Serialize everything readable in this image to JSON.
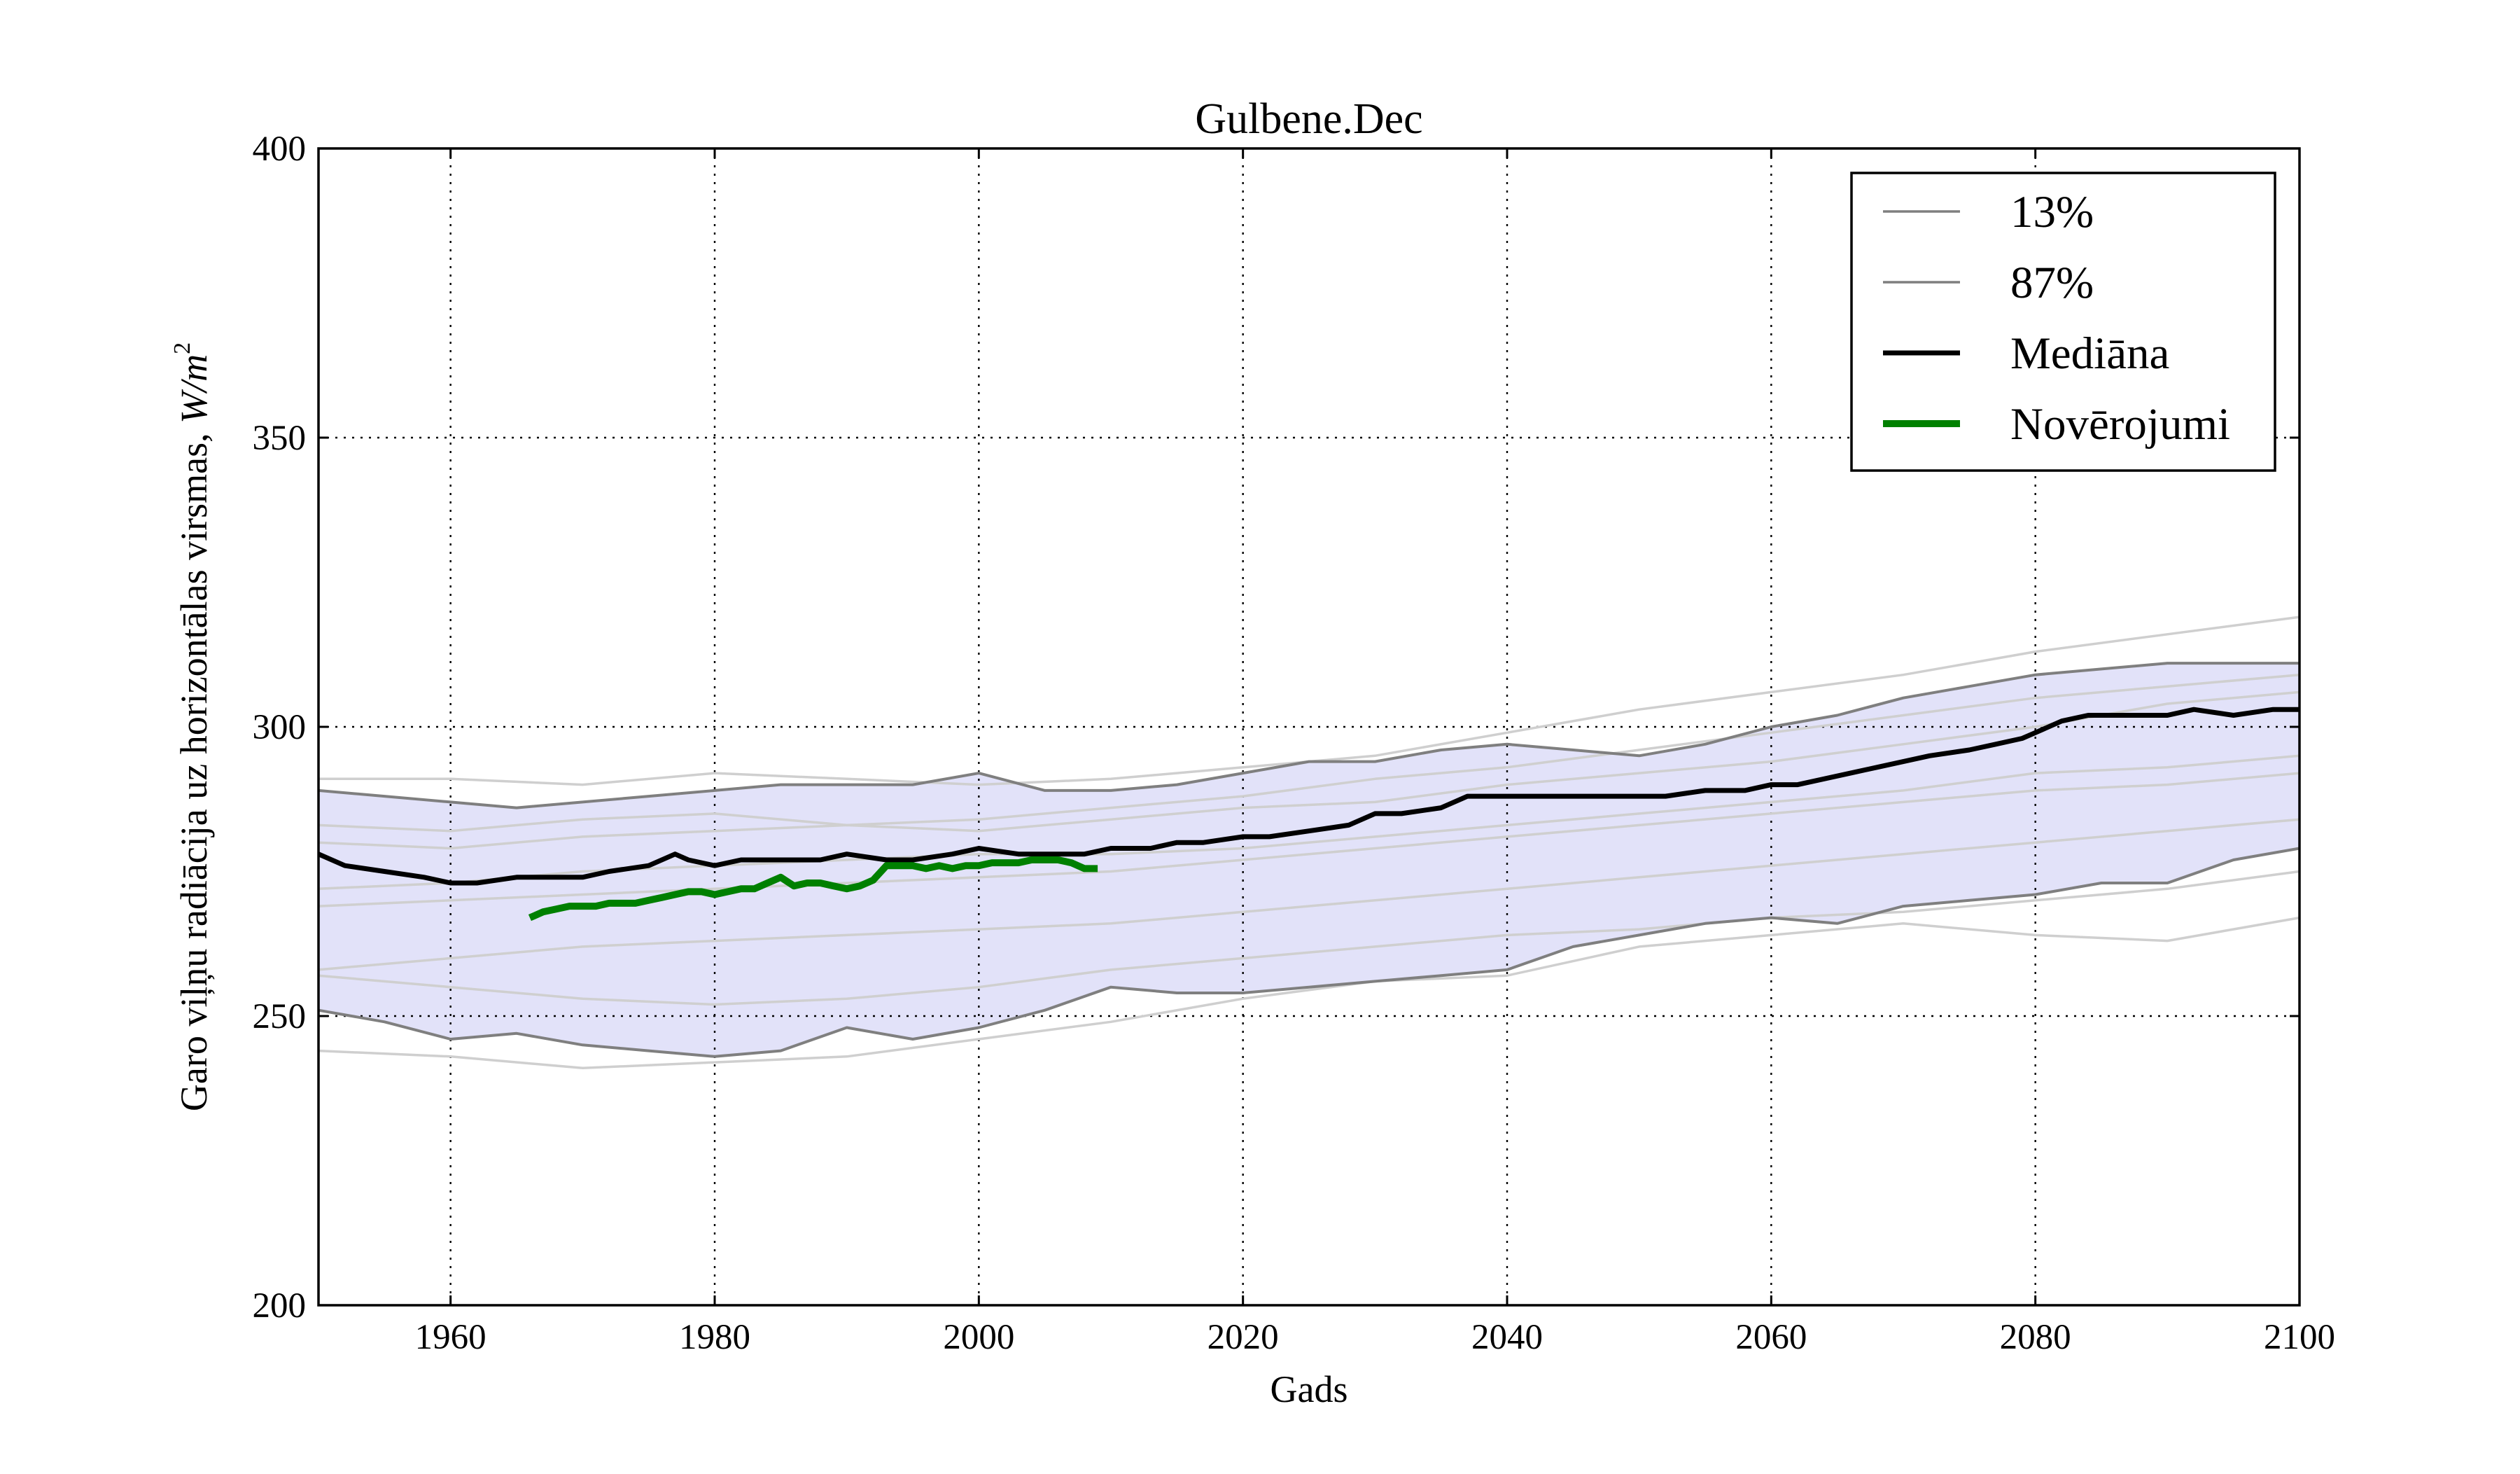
{
  "chart_data": {
    "type": "line",
    "title": "Gulbene.Dec",
    "xlabel": "Gads",
    "ylabel": "Garo viļņu radiācija uz horizontālas virsmas, W/m²",
    "ylabel_unit": "W/m²",
    "xlim": [
      1950,
      2100
    ],
    "ylim": [
      200,
      400
    ],
    "xticks": [
      "1960",
      "1980",
      "2000",
      "2020",
      "2040",
      "2060",
      "2080",
      "2100"
    ],
    "yticks": [
      "200",
      "250",
      "300",
      "350",
      "400"
    ],
    "grid": true,
    "legend_position": "top-right",
    "colors": {
      "band": "#e2e2f9",
      "p13": "#7f7f7f",
      "p87": "#7f7f7f",
      "ensemble": "#cfcfcf",
      "median": "#000000",
      "observations": "#008000"
    },
    "legend": [
      {
        "label": "13%",
        "color": "#7f7f7f",
        "width": 3.5
      },
      {
        "label": "87%",
        "color": "#7f7f7f",
        "width": 3.5
      },
      {
        "label": "Mediāna",
        "color": "#000000",
        "width": 7
      },
      {
        "label": "Novērojumi",
        "color": "#008000",
        "width": 10
      }
    ],
    "series": [
      {
        "name": "13%",
        "x": [
          1950,
          1955,
          1960,
          1965,
          1970,
          1975,
          1980,
          1985,
          1990,
          1995,
          2000,
          2005,
          2010,
          2015,
          2020,
          2025,
          2030,
          2035,
          2040,
          2045,
          2050,
          2055,
          2060,
          2065,
          2070,
          2075,
          2080,
          2085,
          2090,
          2095,
          2100
        ],
        "y": [
          251,
          249,
          246,
          247,
          245,
          244,
          243,
          244,
          248,
          246,
          248,
          251,
          255,
          254,
          254,
          255,
          256,
          257,
          258,
          262,
          264,
          266,
          267,
          266,
          269,
          270,
          271,
          273,
          273,
          277,
          279
        ]
      },
      {
        "name": "87%",
        "x": [
          1950,
          1955,
          1960,
          1965,
          1970,
          1975,
          1980,
          1985,
          1990,
          1995,
          2000,
          2005,
          2010,
          2015,
          2020,
          2025,
          2030,
          2035,
          2040,
          2045,
          2050,
          2055,
          2060,
          2065,
          2070,
          2075,
          2080,
          2085,
          2090,
          2095,
          2100
        ],
        "y": [
          289,
          288,
          287,
          286,
          287,
          288,
          289,
          290,
          290,
          290,
          292,
          289,
          289,
          290,
          292,
          294,
          294,
          296,
          297,
          296,
          295,
          297,
          300,
          302,
          305,
          307,
          309,
          310,
          311,
          311,
          311
        ]
      },
      {
        "name": "Mediāna",
        "x": [
          1950,
          1952,
          1955,
          1958,
          1960,
          1962,
          1965,
          1968,
          1970,
          1972,
          1975,
          1977,
          1978,
          1980,
          1982,
          1985,
          1988,
          1990,
          1993,
          1995,
          1998,
          2000,
          2003,
          2005,
          2008,
          2010,
          2013,
          2015,
          2017,
          2020,
          2022,
          2025,
          2028,
          2030,
          2032,
          2035,
          2037,
          2040,
          2042,
          2045,
          2048,
          2050,
          2052,
          2055,
          2058,
          2060,
          2062,
          2064,
          2066,
          2068,
          2070,
          2072,
          2075,
          2077,
          2079,
          2080,
          2082,
          2084,
          2087,
          2090,
          2092,
          2095,
          2098,
          2100
        ],
        "y": [
          278,
          276,
          275,
          274,
          273,
          273,
          274,
          274,
          274,
          275,
          276,
          278,
          277,
          276,
          277,
          277,
          277,
          278,
          277,
          277,
          278,
          279,
          278,
          278,
          278,
          279,
          279,
          280,
          280,
          281,
          281,
          282,
          283,
          285,
          285,
          286,
          288,
          288,
          288,
          288,
          288,
          288,
          288,
          289,
          289,
          290,
          290,
          291,
          292,
          293,
          294,
          295,
          296,
          297,
          298,
          299,
          301,
          302,
          302,
          302,
          303,
          302,
          303,
          303
        ]
      },
      {
        "name": "Novērojumi",
        "x": [
          1966,
          1967,
          1968,
          1969,
          1970,
          1971,
          1972,
          1973,
          1974,
          1975,
          1976,
          1977,
          1978,
          1979,
          1980,
          1981,
          1982,
          1983,
          1984,
          1985,
          1986,
          1987,
          1988,
          1989,
          1990,
          1991,
          1992,
          1993,
          1994,
          1995,
          1996,
          1997,
          1998,
          1999,
          2000,
          2001,
          2002,
          2003,
          2004,
          2005,
          2006,
          2007,
          2008,
          2009
        ],
        "y": [
          267,
          268,
          268.5,
          269,
          269,
          269,
          269.5,
          269.5,
          269.5,
          270,
          270.5,
          271,
          271.5,
          271.5,
          271,
          271.5,
          272,
          272,
          273,
          274,
          272.5,
          273,
          273,
          272.5,
          272,
          272.5,
          273.5,
          276,
          276,
          276,
          275.5,
          276,
          275.5,
          276,
          276,
          276.5,
          276.5,
          276.5,
          277,
          277,
          277,
          276.5,
          275.5,
          275.5
        ]
      }
    ],
    "ensemble_members": [
      {
        "x": [
          1950,
          1960,
          1970,
          1980,
          1990,
          2000,
          2010,
          2020,
          2030,
          2040,
          2050,
          2060,
          2070,
          2080,
          2090,
          2100
        ],
        "y": [
          291,
          291,
          290,
          292,
          291,
          290,
          291,
          293,
          295,
          299,
          303,
          306,
          309,
          313,
          316,
          319
        ]
      },
      {
        "x": [
          1950,
          1960,
          1970,
          1980,
          1990,
          2000,
          2010,
          2020,
          2030,
          2040,
          2050,
          2060,
          2070,
          2080,
          2090,
          2100
        ],
        "y": [
          283,
          282,
          284,
          285,
          283,
          284,
          286,
          288,
          291,
          293,
          296,
          299,
          302,
          305,
          307,
          309
        ]
      },
      {
        "x": [
          1950,
          1960,
          1970,
          1980,
          1990,
          2000,
          2010,
          2020,
          2030,
          2040,
          2050,
          2060,
          2070,
          2080,
          2090,
          2100
        ],
        "y": [
          280,
          279,
          281,
          282,
          283,
          282,
          284,
          286,
          287,
          290,
          292,
          294,
          297,
          300,
          304,
          306
        ]
      },
      {
        "x": [
          1950,
          1960,
          1970,
          1980,
          1990,
          2000,
          2010,
          2020,
          2030,
          2040,
          2050,
          2060,
          2070,
          2080,
          2090,
          2100
        ],
        "y": [
          272,
          273,
          275,
          276,
          277,
          278,
          278,
          279,
          281,
          283,
          285,
          287,
          289,
          292,
          293,
          295
        ]
      },
      {
        "x": [
          1950,
          1960,
          1970,
          1980,
          1990,
          2000,
          2010,
          2020,
          2030,
          2040,
          2050,
          2060,
          2070,
          2080,
          2090,
          2100
        ],
        "y": [
          269,
          270,
          271,
          272,
          273,
          274,
          275,
          277,
          279,
          281,
          283,
          285,
          287,
          289,
          290,
          292
        ]
      },
      {
        "x": [
          1950,
          1960,
          1970,
          1980,
          1990,
          2000,
          2010,
          2020,
          2030,
          2040,
          2050,
          2060,
          2070,
          2080,
          2090,
          2100
        ],
        "y": [
          258,
          260,
          262,
          263,
          264,
          265,
          266,
          268,
          270,
          272,
          274,
          276,
          278,
          280,
          282,
          284
        ]
      },
      {
        "x": [
          1950,
          1960,
          1970,
          1980,
          1990,
          2000,
          2010,
          2020,
          2030,
          2040,
          2050,
          2060,
          2070,
          2080,
          2090,
          2100
        ],
        "y": [
          257,
          255,
          253,
          252,
          253,
          255,
          258,
          260,
          262,
          264,
          265,
          267,
          268,
          270,
          272,
          275
        ]
      },
      {
        "x": [
          1950,
          1960,
          1970,
          1980,
          1990,
          2000,
          2010,
          2020,
          2030,
          2040,
          2050,
          2060,
          2070,
          2080,
          2090,
          2100
        ],
        "y": [
          244,
          243,
          241,
          242,
          243,
          246,
          249,
          253,
          256,
          257,
          262,
          264,
          266,
          264,
          263,
          267
        ]
      }
    ]
  }
}
